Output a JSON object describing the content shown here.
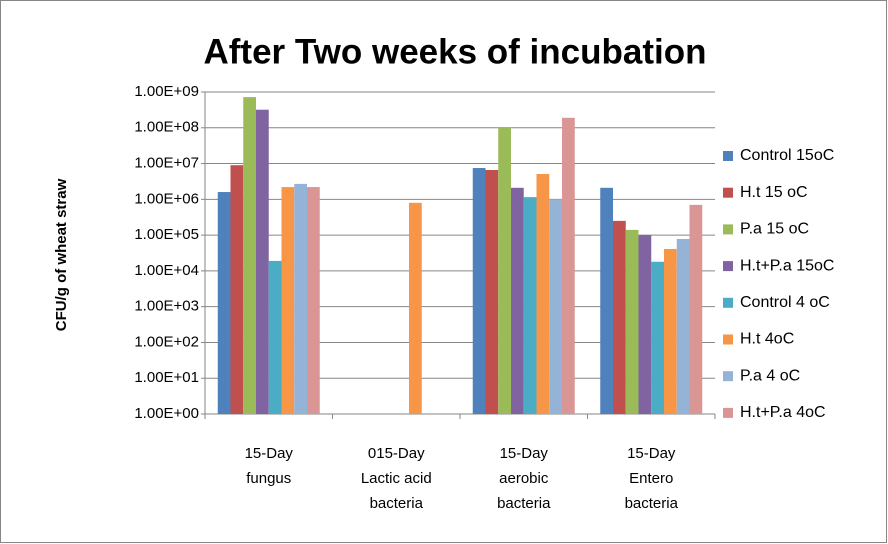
{
  "chart_data": {
    "type": "bar",
    "title": "After Two weeks of incubation",
    "y_label": "CFU/g of wheat straw",
    "log_scale": true,
    "grid": true,
    "legend": "right",
    "categories": [
      [
        "15-Day",
        "fungus"
      ],
      [
        "015-Day",
        "Lactic acid",
        "bacteria"
      ],
      [
        "15-Day",
        "aerobic",
        "bacteria"
      ],
      [
        "15-Day",
        "Entero",
        "bacteria"
      ]
    ],
    "ylim": [
      1,
      1000000000
    ],
    "yticks": [
      {
        "value": 1,
        "label": "1.00E+00"
      },
      {
        "value": 10,
        "label": "1.00E+01"
      },
      {
        "value": 100,
        "label": "1.00E+02"
      },
      {
        "value": 1000,
        "label": "1.00E+03"
      },
      {
        "value": 10000,
        "label": "1.00E+04"
      },
      {
        "value": 100000,
        "label": "1.00E+05"
      },
      {
        "value": 1000000,
        "label": "1.00E+06"
      },
      {
        "value": 10000000,
        "label": "1.00E+07"
      },
      {
        "value": 100000000,
        "label": "1.00E+08"
      },
      {
        "value": 1000000000,
        "label": "1.00E+09"
      }
    ],
    "series": [
      {
        "name": "Control 15oC",
        "color": "#4f81bd",
        "values": [
          1600000,
          null,
          7500000,
          2100000
        ]
      },
      {
        "name": "H.t 15 oC",
        "color": "#c0504d",
        "values": [
          9000000,
          null,
          6600000,
          250000
        ]
      },
      {
        "name": "P.a  15 oC",
        "color": "#9bbb59",
        "values": [
          720000000,
          null,
          105000000,
          140000
        ]
      },
      {
        "name": "H.t+P.a 15oC",
        "color": "#8064a2",
        "values": [
          320000000,
          null,
          2100000,
          100000
        ]
      },
      {
        "name": "Control 4 oC",
        "color": "#4bacc6",
        "values": [
          19000,
          null,
          1150000,
          18000
        ]
      },
      {
        "name": "H.t 4oC",
        "color": "#f79646",
        "values": [
          2200000,
          800000,
          5100000,
          41000
        ]
      },
      {
        "name": "P.a  4 oC",
        "color": "#95b3d7",
        "values": [
          2700000,
          null,
          1000000,
          78000
        ]
      },
      {
        "name": "H.t+P.a 4oC",
        "color": "#d99694",
        "values": [
          2200000,
          null,
          190000000,
          700000
        ]
      }
    ]
  }
}
